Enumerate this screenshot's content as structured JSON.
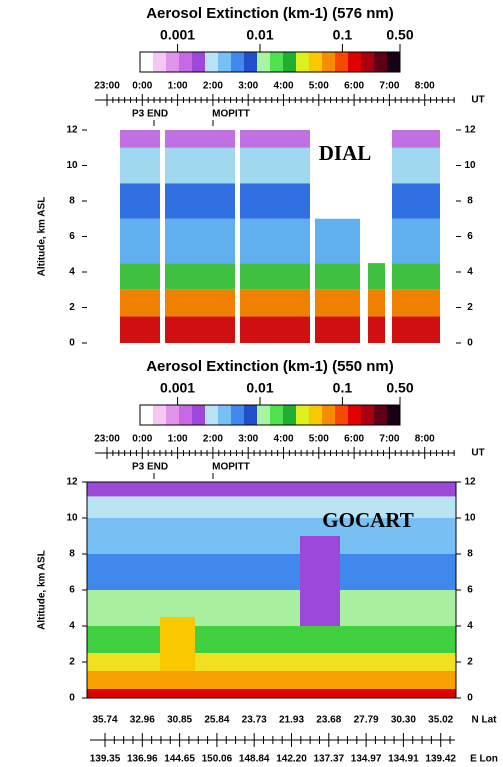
{
  "panels": [
    {
      "title": "Aerosol Extinction (km-1) (576 nm)",
      "label": "DIAL",
      "colorbar_ticks": [
        0.001,
        0.01,
        0.1,
        {
          "value": 0.5,
          "label": "0.50"
        }
      ],
      "clim": [
        0.00035,
        0.5
      ],
      "log_scale": true,
      "time_ticks": [
        "23:00",
        "0:00",
        "1:00",
        "2:00",
        "3:00",
        "4:00",
        "5:00",
        "6:00",
        "7:00",
        "8:00"
      ],
      "time_unit": "UT",
      "markers": [
        "P3 END",
        "MOPITT"
      ],
      "ylabel": "Altitude, km ASL",
      "ylim": [
        0,
        12
      ],
      "yticks": [
        0,
        2,
        4,
        6,
        8,
        10,
        12
      ]
    },
    {
      "title": "Aerosol Extinction (km-1) (550 nm)",
      "label": "GOCART",
      "colorbar_ticks": [
        0.001,
        0.01,
        0.1,
        {
          "value": 0.5,
          "label": "0.50"
        }
      ],
      "clim": [
        0.00035,
        0.5
      ],
      "log_scale": true,
      "time_ticks": [
        "23:00",
        "0:00",
        "1:00",
        "2:00",
        "3:00",
        "4:00",
        "5:00",
        "6:00",
        "7:00",
        "8:00"
      ],
      "time_unit": "UT",
      "markers": [
        "P3 END",
        "MOPITT"
      ],
      "ylabel": "Altitude, km ASL",
      "ylim": [
        0,
        12
      ],
      "yticks": [
        0,
        2,
        4,
        6,
        8,
        10,
        12
      ]
    }
  ],
  "colorbar_colors": [
    "#ffffff",
    "#f4c8f4",
    "#e294ec",
    "#c868e4",
    "#9c48d8",
    "#b8e4f4",
    "#78c0f4",
    "#4088ec",
    "#2050cc",
    "#a8f4a0",
    "#50e050",
    "#20b030",
    "#dcf020",
    "#f8c800",
    "#f88c00",
    "#f84800",
    "#e00000",
    "#a80010",
    "#600018",
    "#180018"
  ],
  "latitude": {
    "labels": [
      "35.74",
      "32.96",
      "30.85",
      "25.84",
      "23.73",
      "21.93",
      "23.68",
      "27.79",
      "30.30",
      "35.02"
    ],
    "unit": "N Lat"
  },
  "longitude": {
    "labels": [
      "139.35",
      "136.96",
      "144.65",
      "150.06",
      "148.84",
      "142.20",
      "137.37",
      "134.97",
      "134.91",
      "139.42"
    ],
    "unit": "E Lon"
  }
}
